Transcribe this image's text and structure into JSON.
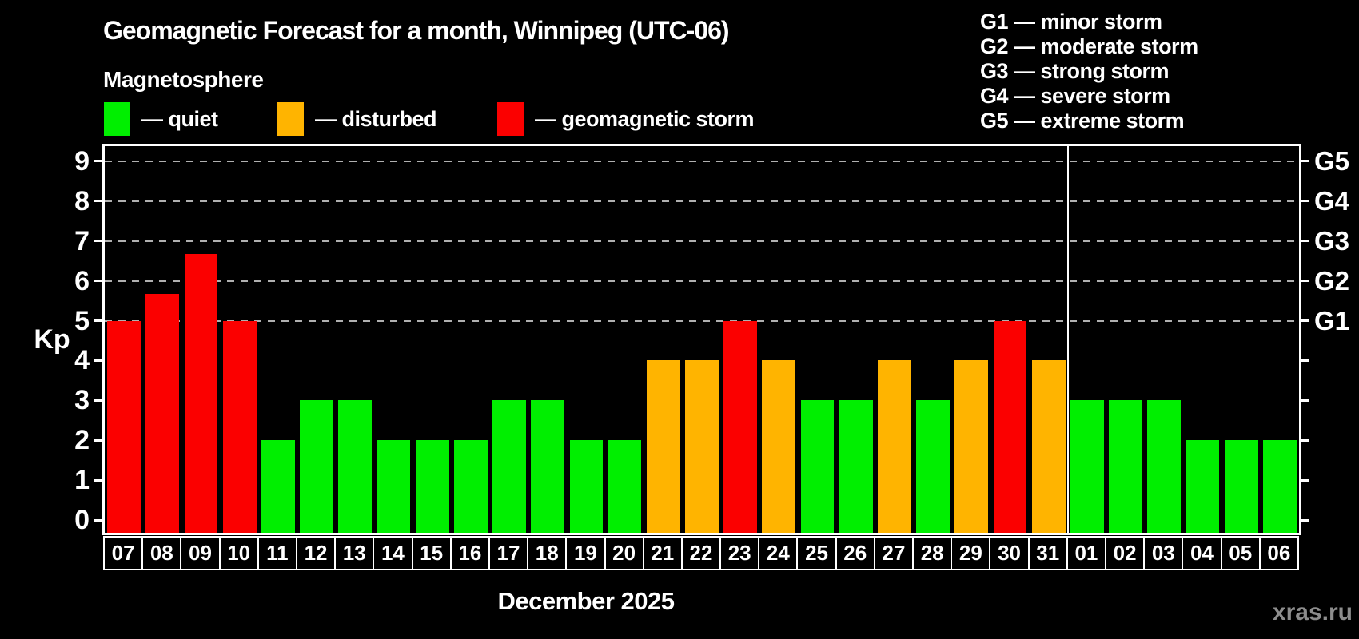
{
  "header": {
    "title": "Geomagnetic Forecast for a month, Winnipeg (UTC-06)",
    "subtitle": "Magnetosphere"
  },
  "legend": {
    "items": [
      {
        "key": "quiet",
        "label": "— quiet"
      },
      {
        "key": "disturbed",
        "label": "— disturbed"
      },
      {
        "key": "storm",
        "label": "— geomagnetic storm"
      }
    ]
  },
  "g_scale_legend": {
    "lines": [
      "G1 — minor storm",
      "G2 — moderate storm",
      "G3 — strong storm",
      "G4 — severe storm",
      "G5 — extreme storm"
    ]
  },
  "footer": {
    "x_axis_title": "December 2025",
    "watermark": "xras.ru"
  },
  "chart_data": {
    "type": "bar",
    "title": "Geomagnetic Forecast for a month, Winnipeg (UTC-06)",
    "ylabel": "Kp",
    "x_axis_title": "December 2025",
    "ylim": [
      0,
      9
    ],
    "yticks": [
      0,
      1,
      2,
      3,
      4,
      5,
      6,
      7,
      8,
      9
    ],
    "grid": "dashed horizontal lines at Kp 5–9 only",
    "legend_position": "top-left",
    "right_axis": [
      {
        "kp": 5,
        "label": "G1"
      },
      {
        "kp": 6,
        "label": "G2"
      },
      {
        "kp": 7,
        "label": "G3"
      },
      {
        "kp": 8,
        "label": "G4"
      },
      {
        "kp": 9,
        "label": "G5"
      }
    ],
    "january_starts_at_index": 25,
    "points": [
      {
        "day": "07",
        "kp": 5,
        "state": "storm"
      },
      {
        "day": "08",
        "kp": 5.67,
        "state": "storm"
      },
      {
        "day": "09",
        "kp": 6.67,
        "state": "storm"
      },
      {
        "day": "10",
        "kp": 5,
        "state": "storm"
      },
      {
        "day": "11",
        "kp": 2,
        "state": "quiet"
      },
      {
        "day": "12",
        "kp": 3,
        "state": "quiet"
      },
      {
        "day": "13",
        "kp": 3,
        "state": "quiet"
      },
      {
        "day": "14",
        "kp": 2,
        "state": "quiet"
      },
      {
        "day": "15",
        "kp": 2,
        "state": "quiet"
      },
      {
        "day": "16",
        "kp": 2,
        "state": "quiet"
      },
      {
        "day": "17",
        "kp": 3,
        "state": "quiet"
      },
      {
        "day": "18",
        "kp": 3,
        "state": "quiet"
      },
      {
        "day": "19",
        "kp": 2,
        "state": "quiet"
      },
      {
        "day": "20",
        "kp": 2,
        "state": "quiet"
      },
      {
        "day": "21",
        "kp": 4,
        "state": "disturbed"
      },
      {
        "day": "22",
        "kp": 4,
        "state": "disturbed"
      },
      {
        "day": "23",
        "kp": 5,
        "state": "storm"
      },
      {
        "day": "24",
        "kp": 4,
        "state": "disturbed"
      },
      {
        "day": "25",
        "kp": 3,
        "state": "quiet"
      },
      {
        "day": "26",
        "kp": 3,
        "state": "quiet"
      },
      {
        "day": "27",
        "kp": 4,
        "state": "disturbed"
      },
      {
        "day": "28",
        "kp": 3,
        "state": "quiet"
      },
      {
        "day": "29",
        "kp": 4,
        "state": "disturbed"
      },
      {
        "day": "30",
        "kp": 5,
        "state": "storm"
      },
      {
        "day": "31",
        "kp": 4,
        "state": "disturbed"
      },
      {
        "day": "01",
        "kp": 3,
        "state": "quiet"
      },
      {
        "day": "02",
        "kp": 3,
        "state": "quiet"
      },
      {
        "day": "03",
        "kp": 3,
        "state": "quiet"
      },
      {
        "day": "04",
        "kp": 2,
        "state": "quiet"
      },
      {
        "day": "05",
        "kp": 2,
        "state": "quiet"
      },
      {
        "day": "06",
        "kp": 2,
        "state": "quiet"
      }
    ],
    "state_colors": {
      "quiet": "#00ef00",
      "disturbed": "#ffb400",
      "storm": "#fb0000"
    },
    "axis_color": "#ffffff",
    "grid_color": "#b0b0b0",
    "background_color": "#000000",
    "watermark_color": "#8d8d8d"
  }
}
